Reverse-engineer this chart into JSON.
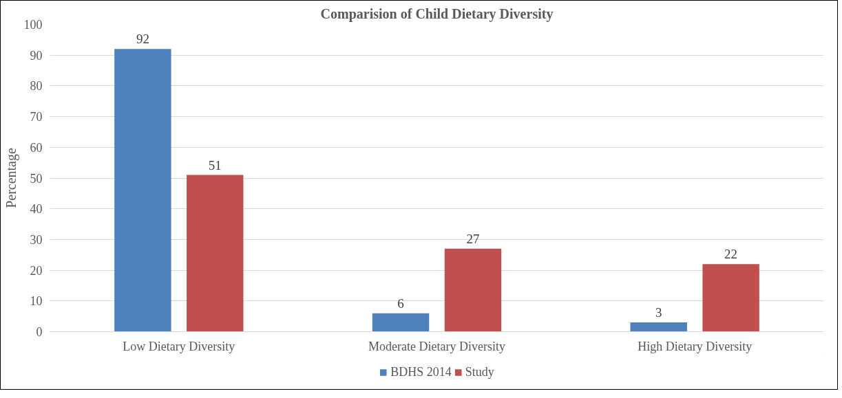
{
  "chart_data": {
    "type": "bar",
    "title": "Comparision of Child Dietary Diversity",
    "ylabel": "Percentage",
    "categories": [
      "Low Dietary Diversity",
      "Moderate Dietary Diversity",
      "High Dietary Diversity"
    ],
    "series": [
      {
        "name": "BDHS 2014",
        "color": "#4f81bd",
        "values": [
          92,
          6,
          3
        ]
      },
      {
        "name": "Study",
        "color": "#c0504d",
        "values": [
          51,
          27,
          22
        ]
      }
    ],
    "ylim": [
      0,
      100
    ],
    "yticks": [
      0,
      10,
      20,
      30,
      40,
      50,
      60,
      70,
      80,
      90,
      100
    ],
    "grid": "y",
    "legend": "bottom",
    "data_labels": true
  }
}
